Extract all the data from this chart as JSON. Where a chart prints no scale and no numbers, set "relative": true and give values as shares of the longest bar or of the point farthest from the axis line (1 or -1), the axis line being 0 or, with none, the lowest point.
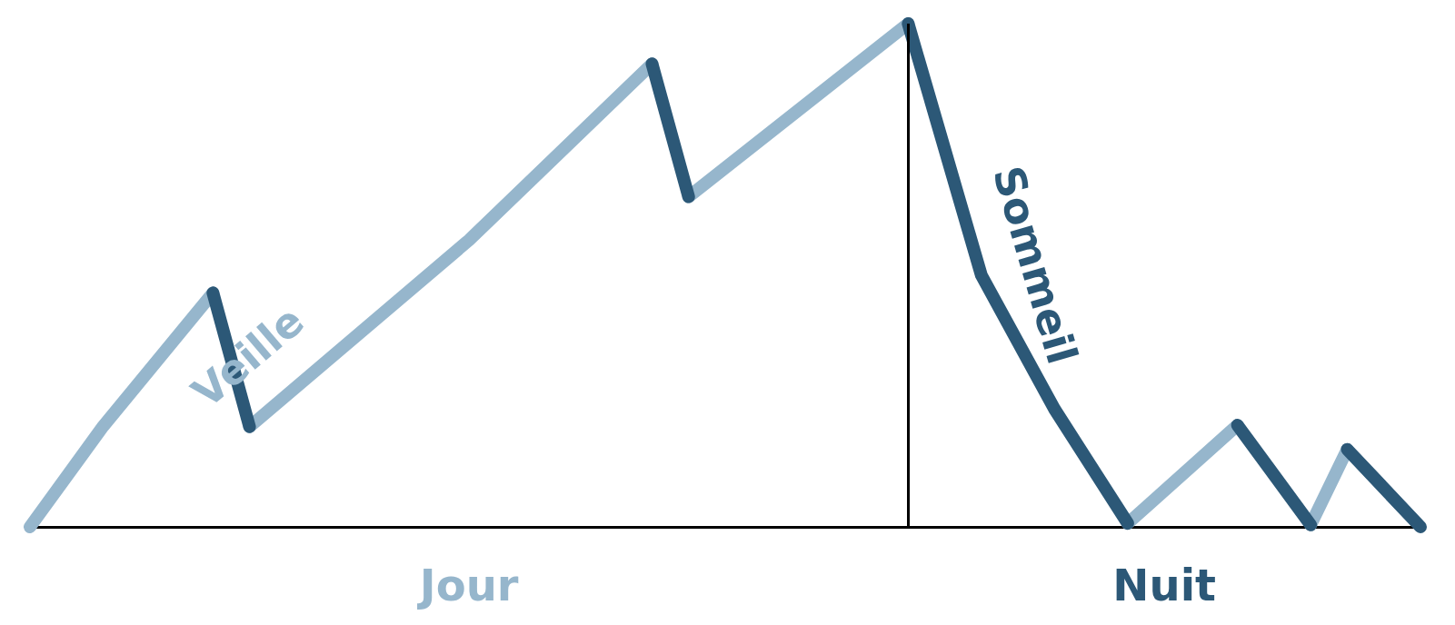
{
  "chart_data": {
    "type": "line",
    "relative": true,
    "legend": false,
    "line_style": "solid",
    "categories": [
      null,
      null,
      null,
      null,
      null,
      null,
      null,
      null,
      null,
      null,
      null,
      null,
      "Jour",
      null,
      null,
      null,
      null,
      null,
      null,
      null,
      null,
      null,
      null,
      null,
      null,
      null,
      null,
      null,
      null,
      null,
      null,
      "Nuit",
      null,
      null,
      null,
      null,
      null,
      null,
      null
    ],
    "series": [
      {
        "color": "#96b6cc",
        "values": [
          0,
          null,
          0.2,
          null,
          null,
          0.465,
          null,
          null,
          null,
          null,
          null,
          null,
          null,
          null,
          null,
          null,
          null,
          null,
          null,
          null,
          null,
          null,
          null,
          null,
          null,
          null,
          null,
          null,
          null,
          null,
          null,
          null,
          null,
          null,
          null,
          null,
          null,
          null,
          null
        ]
      },
      {
        "color": "#2c5877",
        "values": [
          null,
          null,
          null,
          null,
          null,
          0.465,
          0.199,
          null,
          null,
          null,
          null,
          null,
          null,
          null,
          null,
          null,
          null,
          null,
          null,
          null,
          null,
          null,
          null,
          null,
          null,
          null,
          null,
          null,
          null,
          null,
          null,
          null,
          null,
          null,
          null,
          null,
          null,
          null,
          null
        ]
      },
      {
        "name": "Veille",
        "color": "#96b6cc",
        "values": [
          null,
          null,
          null,
          null,
          null,
          null,
          0.199,
          null,
          null,
          null,
          null,
          null,
          0.57,
          null,
          null,
          null,
          null,
          0.92,
          null,
          null,
          null,
          null,
          null,
          null,
          null,
          null,
          null,
          null,
          null,
          null,
          null,
          null,
          null,
          null,
          null,
          null,
          null,
          null,
          null
        ]
      },
      {
        "color": "#2c5877",
        "values": [
          null,
          null,
          null,
          null,
          null,
          null,
          null,
          null,
          null,
          null,
          null,
          null,
          null,
          null,
          null,
          null,
          null,
          0.92,
          0.656,
          null,
          null,
          null,
          null,
          null,
          null,
          null,
          null,
          null,
          null,
          null,
          null,
          null,
          null,
          null,
          null,
          null,
          null,
          null,
          null
        ]
      },
      {
        "color": "#96b6cc",
        "values": [
          null,
          null,
          null,
          null,
          null,
          null,
          null,
          null,
          null,
          null,
          null,
          null,
          null,
          null,
          null,
          null,
          null,
          null,
          0.656,
          null,
          null,
          null,
          null,
          null,
          1,
          null,
          null,
          null,
          null,
          null,
          null,
          null,
          null,
          null,
          null,
          null,
          null,
          null,
          null
        ]
      },
      {
        "name": "Sommeil",
        "color": "#2c5877",
        "values": [
          null,
          null,
          null,
          null,
          null,
          null,
          null,
          null,
          null,
          null,
          null,
          null,
          null,
          null,
          null,
          null,
          null,
          null,
          null,
          null,
          null,
          null,
          null,
          null,
          1,
          null,
          0.5,
          null,
          0.234,
          null,
          0.007,
          null,
          null,
          null,
          null,
          null,
          null,
          null,
          null
        ]
      },
      {
        "color": "#96b6cc",
        "values": [
          null,
          null,
          null,
          null,
          null,
          null,
          null,
          null,
          null,
          null,
          null,
          null,
          null,
          null,
          null,
          null,
          null,
          null,
          null,
          null,
          null,
          null,
          null,
          null,
          null,
          null,
          null,
          null,
          null,
          null,
          0.007,
          null,
          null,
          0.202,
          null,
          null,
          null,
          null,
          null
        ]
      },
      {
        "color": "#2c5877",
        "values": [
          null,
          null,
          null,
          null,
          null,
          null,
          null,
          null,
          null,
          null,
          null,
          null,
          null,
          null,
          null,
          null,
          null,
          null,
          null,
          null,
          null,
          null,
          null,
          null,
          null,
          null,
          null,
          null,
          null,
          null,
          null,
          null,
          null,
          0.202,
          null,
          0.004,
          null,
          null,
          null
        ]
      },
      {
        "color": "#96b6cc",
        "values": [
          null,
          null,
          null,
          null,
          null,
          null,
          null,
          null,
          null,
          null,
          null,
          null,
          null,
          null,
          null,
          null,
          null,
          null,
          null,
          null,
          null,
          null,
          null,
          null,
          null,
          null,
          null,
          null,
          null,
          null,
          null,
          null,
          null,
          null,
          null,
          0.004,
          0.154,
          null,
          null
        ]
      },
      {
        "color": "#2c5877",
        "values": [
          null,
          null,
          null,
          null,
          null,
          null,
          null,
          null,
          null,
          null,
          null,
          null,
          null,
          null,
          null,
          null,
          null,
          null,
          null,
          null,
          null,
          null,
          null,
          null,
          null,
          null,
          null,
          null,
          null,
          null,
          null,
          null,
          null,
          null,
          null,
          null,
          0.154,
          null,
          0
        ]
      }
    ]
  }
}
